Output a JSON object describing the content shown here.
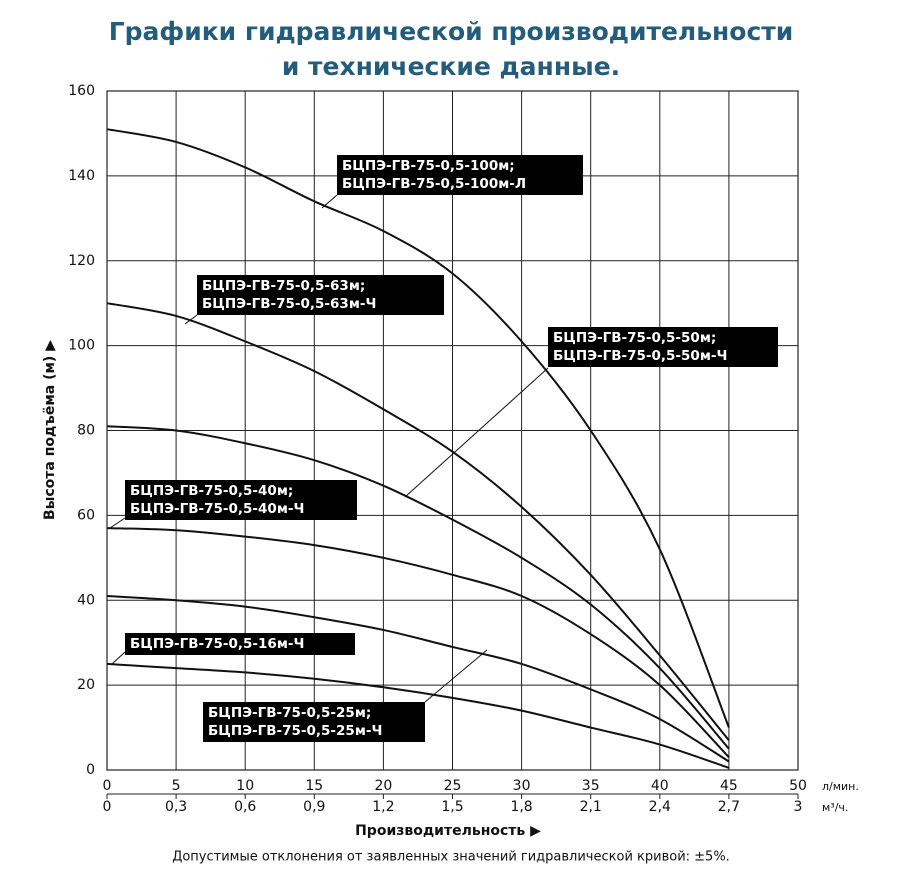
{
  "chart_data": {
    "type": "line",
    "title": [
      "Графики гидравлической производительности",
      "и технические данные."
    ],
    "x_label": "Производительность ▶",
    "y_label": "Высота подъёма (м) ▶",
    "x_unit": "л/мин.",
    "x2_unit": "м³/ч.",
    "note": "Допустимые отклонения от заявленных значений гидравлической кривой: ±5%.",
    "x": [
      0,
      5,
      10,
      15,
      20,
      25,
      30,
      35,
      40,
      45
    ],
    "xlim": [
      0,
      50
    ],
    "xticks": [
      0,
      5,
      10,
      15,
      20,
      25,
      30,
      35,
      40,
      45,
      50
    ],
    "x2lim": [
      0,
      3
    ],
    "x2ticks": [
      0,
      {
        "value": 0.3,
        "label": "0,3"
      },
      {
        "value": 0.6,
        "label": "0,6"
      },
      {
        "value": 0.9,
        "label": "0,9"
      },
      {
        "value": 1.2,
        "label": "1,2"
      },
      {
        "value": 1.5,
        "label": "1,5"
      },
      {
        "value": 1.8,
        "label": "1,8"
      },
      {
        "value": 2.1,
        "label": "2,1"
      },
      {
        "value": 2.4,
        "label": "2,4"
      },
      {
        "value": 2.7,
        "label": "2,7"
      },
      3
    ],
    "ylim": [
      0,
      160
    ],
    "yticks": [
      0,
      20,
      40,
      60,
      80,
      100,
      120,
      140,
      160
    ],
    "grid": true,
    "series": [
      {
        "labels": [
          "БЦПЭ-ГВ-75-0,5-100м;",
          "БЦПЭ-ГВ-75-0,5-100м-Л"
        ],
        "color": "#111111",
        "values": [
          151,
          148,
          142,
          134,
          127,
          117,
          101,
          80,
          52,
          10
        ]
      },
      {
        "labels": [
          "БЦПЭ-ГВ-75-0,5-63м;",
          "БЦПЭ-ГВ-75-0,5-63м-Ч"
        ],
        "color": "#111111",
        "values": [
          110,
          107,
          101,
          94,
          85,
          75,
          62,
          46,
          27,
          7
        ]
      },
      {
        "labels": [
          "БЦПЭ-ГВ-75-0,5-50м;",
          "БЦПЭ-ГВ-75-0,5-50м-Ч"
        ],
        "color": "#111111",
        "values": [
          81,
          80,
          77,
          73,
          67,
          59,
          50,
          39,
          24,
          5
        ]
      },
      {
        "labels": [
          "БЦПЭ-ГВ-75-0,5-40м;",
          "БЦПЭ-ГВ-75-0,5-40м-Ч"
        ],
        "color": "#111111",
        "values": [
          57,
          56.5,
          55,
          53,
          50,
          46,
          41,
          32,
          20,
          3
        ]
      },
      {
        "labels": [
          "БЦПЭ-ГВ-75-0,5-25м;",
          "БЦПЭ-ГВ-75-0,5-25м-Ч"
        ],
        "color": "#111111",
        "values": [
          41,
          40,
          38.5,
          36,
          33,
          29,
          25,
          19,
          12,
          2
        ]
      },
      {
        "labels": [
          "БЦПЭ-ГВ-75-0,5-16м-Ч"
        ],
        "color": "#111111",
        "values": [
          25,
          24,
          23,
          21.5,
          19.5,
          17,
          14,
          10,
          6,
          0.5
        ]
      }
    ]
  }
}
